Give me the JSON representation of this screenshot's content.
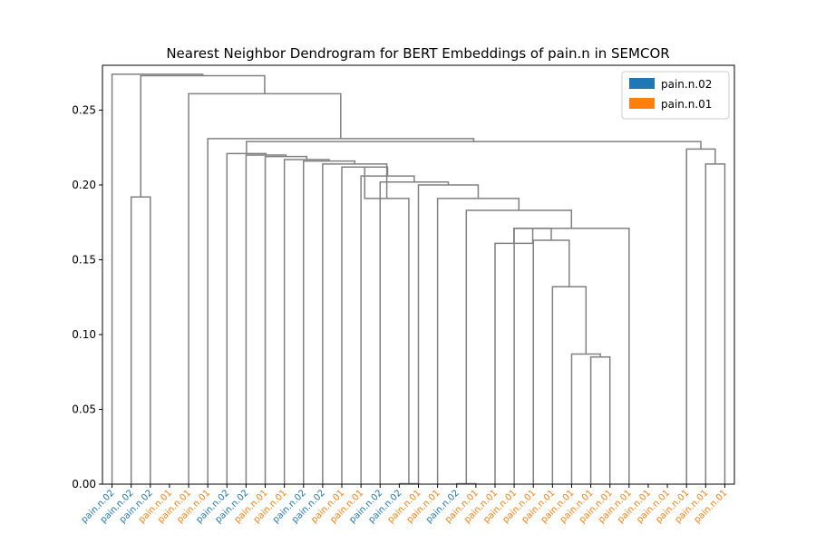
{
  "chart_data": {
    "type": "dendrogram",
    "title": "Nearest Neighbor Dendrogram for BERT Embeddings of pain.n in SEMCOR",
    "xlabel": "",
    "ylabel": "",
    "ylim": [
      0,
      0.28
    ],
    "yticks": [
      "0.00",
      "0.05",
      "0.10",
      "0.15",
      "0.20",
      "0.25"
    ],
    "grid": false,
    "legend_position": "top-right",
    "link_color": "#808080",
    "legend": [
      {
        "label": "pain.n.02",
        "color": "#1f77b4"
      },
      {
        "label": "pain.n.01",
        "color": "#ff7f0e"
      }
    ],
    "leaves": [
      {
        "label": "pain.n.02",
        "color": "#1f77b4"
      },
      {
        "label": "pain.n.02",
        "color": "#1f77b4"
      },
      {
        "label": "pain.n.02",
        "color": "#1f77b4"
      },
      {
        "label": "pain.n.01",
        "color": "#ff7f0e"
      },
      {
        "label": "pain.n.01",
        "color": "#ff7f0e"
      },
      {
        "label": "pain.n.01",
        "color": "#ff7f0e"
      },
      {
        "label": "pain.n.02",
        "color": "#1f77b4"
      },
      {
        "label": "pain.n.02",
        "color": "#1f77b4"
      },
      {
        "label": "pain.n.01",
        "color": "#ff7f0e"
      },
      {
        "label": "pain.n.01",
        "color": "#ff7f0e"
      },
      {
        "label": "pain.n.02",
        "color": "#1f77b4"
      },
      {
        "label": "pain.n.02",
        "color": "#1f77b4"
      },
      {
        "label": "pain.n.01",
        "color": "#ff7f0e"
      },
      {
        "label": "pain.n.01",
        "color": "#ff7f0e"
      },
      {
        "label": "pain.n.02",
        "color": "#1f77b4"
      },
      {
        "label": "pain.n.02",
        "color": "#1f77b4"
      },
      {
        "label": "pain.n.01",
        "color": "#ff7f0e"
      },
      {
        "label": "pain.n.01",
        "color": "#ff7f0e"
      },
      {
        "label": "pain.n.02",
        "color": "#1f77b4"
      },
      {
        "label": "pain.n.01",
        "color": "#ff7f0e"
      },
      {
        "label": "pain.n.01",
        "color": "#ff7f0e"
      },
      {
        "label": "pain.n.01",
        "color": "#ff7f0e"
      },
      {
        "label": "pain.n.01",
        "color": "#ff7f0e"
      },
      {
        "label": "pain.n.01",
        "color": "#ff7f0e"
      },
      {
        "label": "pain.n.01",
        "color": "#ff7f0e"
      },
      {
        "label": "pain.n.01",
        "color": "#ff7f0e"
      },
      {
        "label": "pain.n.01",
        "color": "#ff7f0e"
      },
      {
        "label": "pain.n.01",
        "color": "#ff7f0e"
      },
      {
        "label": "pain.n.01",
        "color": "#ff7f0e"
      },
      {
        "label": "pain.n.01",
        "color": "#ff7f0e"
      },
      {
        "label": "pain.n.01",
        "color": "#ff7f0e"
      },
      {
        "label": "pain.n.01",
        "color": "#ff7f0e"
      },
      {
        "label": "pain.n.01",
        "color": "#ff7f0e"
      }
    ],
    "merges": [
      {
        "a": "L1",
        "b": "L2",
        "h": 0.192
      },
      {
        "a": "L15",
        "b": "L16",
        "h": 0.0003
      },
      {
        "a": "L18",
        "b": "L19",
        "h": 0.0003
      },
      {
        "a": "L25",
        "b": "L26",
        "h": 0.085
      },
      {
        "a": "L24",
        "b": "M3",
        "h": 0.087
      },
      {
        "a": "L23",
        "b": "M4",
        "h": 0.132
      },
      {
        "a": "L22",
        "b": "M5",
        "h": 0.163
      },
      {
        "a": "L21",
        "b": "M6",
        "h": 0.171
      },
      {
        "a": "L20",
        "b": "M7",
        "h": 0.161
      },
      {
        "a": "L27",
        "b": "M8",
        "h": 0.171
      },
      {
        "a": "M9",
        "b": "M2",
        "h": 0.183
      },
      {
        "a": "M10",
        "b": "L17",
        "h": 0.191
      },
      {
        "a": "M11",
        "b": "L16",
        "h": 0.2
      },
      {
        "a": "M12",
        "b": "L14",
        "h": 0.202
      },
      {
        "a": "M13",
        "b": "L13",
        "h": 0.206
      },
      {
        "a": "M14",
        "b": "L12",
        "h": 0.212
      },
      {
        "a": "M15",
        "b": "M1",
        "h": 0.191
      },
      {
        "a": "M16",
        "b": "L11",
        "h": 0.214
      },
      {
        "a": "M17",
        "b": "L10",
        "h": 0.216
      },
      {
        "a": "M18",
        "b": "L9",
        "h": 0.217
      },
      {
        "a": "M19",
        "b": "L8",
        "h": 0.219
      },
      {
        "a": "M20",
        "b": "L7",
        "h": 0.22
      },
      {
        "a": "M21",
        "b": "L6",
        "h": 0.221
      },
      {
        "a": "L31",
        "b": "L32",
        "h": 0.214
      },
      {
        "a": "L30",
        "b": "M23",
        "h": 0.224
      },
      {
        "a": "M22",
        "b": "M24",
        "h": 0.229
      },
      {
        "a": "M25",
        "b": "L5",
        "h": 0.231
      },
      {
        "a": "M26",
        "b": "L4",
        "h": 0.261
      },
      {
        "a": "M27",
        "b": "M0",
        "h": 0.273
      },
      {
        "a": "M28",
        "b": "L0",
        "h": 0.274
      }
    ]
  }
}
